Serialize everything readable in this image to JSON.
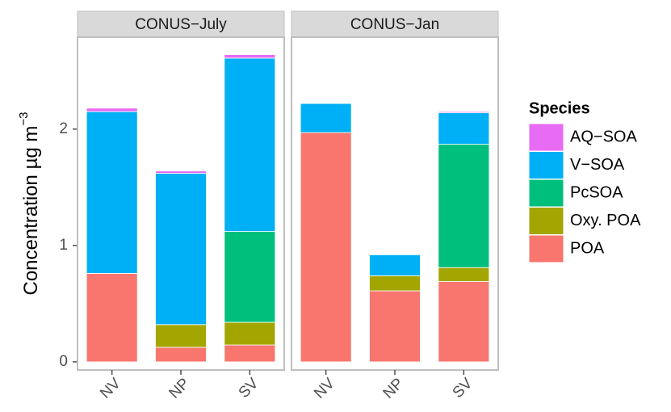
{
  "chart_data": {
    "type": "bar",
    "stacked": true,
    "facets": [
      "CONUS−July",
      "CONUS−Jan"
    ],
    "categories": [
      "NV",
      "NP",
      "SV"
    ],
    "ylabel": "Concentration  µg m",
    "ylabel_superscript": "−3",
    "legend_title": "Species",
    "legend": "right",
    "ylim": [
      -0.07,
      2.79
    ],
    "yticks": [
      0,
      1,
      2
    ],
    "series": [
      {
        "name": "POA",
        "color": "#F8766D",
        "values": [
          [
            0.76,
            0.125,
            0.145
          ],
          [
            1.97,
            0.61,
            0.69
          ]
        ]
      },
      {
        "name": "Oxy. POA",
        "color": "#A3A500",
        "values": [
          [
            0,
            0.195,
            0.195
          ],
          [
            0,
            0.13,
            0.12
          ]
        ]
      },
      {
        "name": "PcSOA",
        "color": "#00BF7D",
        "values": [
          [
            0,
            0,
            0.78
          ],
          [
            0,
            0,
            1.06
          ]
        ]
      },
      {
        "name": "V−SOA",
        "color": "#00B0F6",
        "values": [
          [
            1.39,
            1.3,
            1.49
          ],
          [
            0.25,
            0.18,
            0.27
          ]
        ]
      },
      {
        "name": "AQ−SOA",
        "color": "#E76BF3",
        "values": [
          [
            0.03,
            0.02,
            0.03
          ],
          [
            0,
            0,
            0.01
          ]
        ]
      }
    ]
  }
}
